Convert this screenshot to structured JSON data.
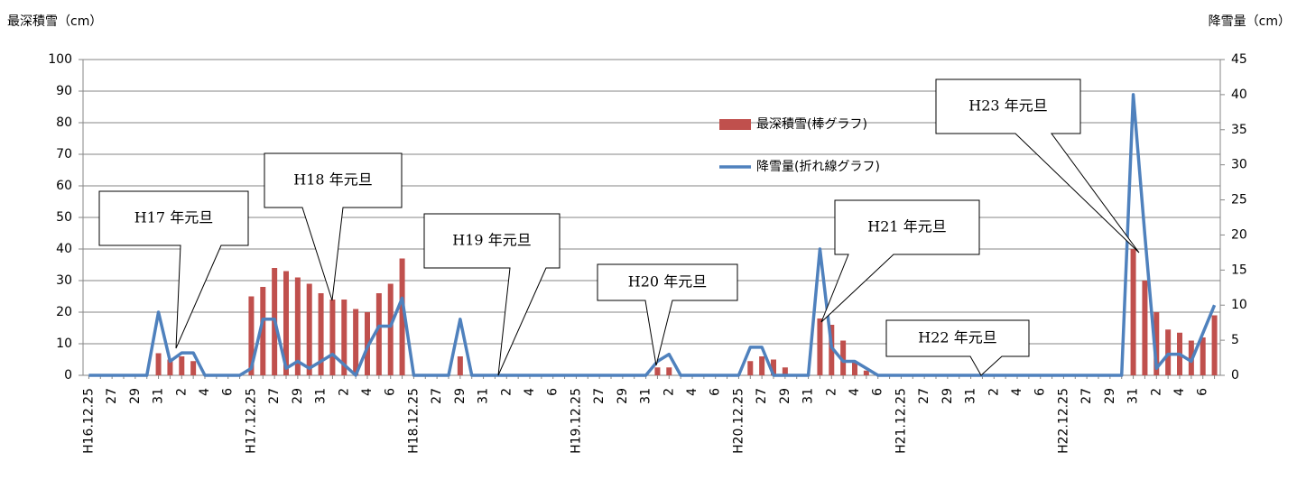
{
  "chart_data": {
    "type": "bar_line",
    "y_label": "最深積雪（cm）",
    "y2_label": "降雪量（cm）",
    "categories": [
      "H16.12.25",
      null,
      "27",
      null,
      "29",
      null,
      "31",
      null,
      "2",
      null,
      "4",
      null,
      "6",
      null,
      "H17.12.25",
      null,
      "27",
      null,
      "29",
      null,
      "31",
      null,
      "2",
      null,
      "4",
      null,
      "6",
      null,
      "H18.12.25",
      null,
      "27",
      null,
      "29",
      null,
      "31",
      null,
      "2",
      null,
      "4",
      null,
      "6",
      null,
      "H19.12.25",
      null,
      "27",
      null,
      "29",
      null,
      "31",
      null,
      "2",
      null,
      "4",
      null,
      "6",
      null,
      "H20.12.25",
      null,
      "27",
      null,
      "29",
      null,
      "31",
      null,
      "2",
      null,
      "4",
      null,
      "6",
      null,
      "H21.12.25",
      null,
      "27",
      null,
      "29",
      null,
      "31",
      null,
      "2",
      null,
      "4",
      null,
      "6",
      null,
      "H22.12.25",
      null,
      "27",
      null,
      "29",
      null,
      "31",
      null,
      "2",
      null,
      "4",
      null,
      "6",
      null
    ],
    "series": [
      {
        "name": "最深積雪(棒グラフ)",
        "type": "bar",
        "axis": "y",
        "color": "#c0504d",
        "values": [
          0,
          0,
          0,
          0,
          0,
          0,
          7,
          5,
          6,
          4.5,
          0,
          0,
          0,
          0,
          25,
          28,
          34,
          33,
          31,
          29,
          26,
          24,
          24,
          21,
          20,
          26,
          29,
          37,
          0,
          0,
          0,
          0,
          6,
          0,
          0,
          0,
          0,
          0,
          0,
          0,
          0,
          0,
          0,
          0,
          0,
          0,
          0,
          0,
          0,
          2.5,
          2.5,
          0,
          0,
          0,
          0,
          0,
          0,
          4.5,
          6,
          5,
          2.5,
          0,
          0,
          18,
          16,
          11,
          4,
          1.5,
          0,
          0,
          0,
          0,
          0,
          0,
          0,
          0,
          0,
          0,
          0,
          0,
          0,
          0,
          0,
          0,
          0,
          0,
          0,
          0,
          0,
          0,
          40,
          30,
          20,
          14.5,
          13.5,
          11,
          12,
          19
        ]
      },
      {
        "name": "降雪量(折れ線グラフ)",
        "type": "line",
        "axis": "y2",
        "color": "#4f81bd",
        "values": [
          0,
          0,
          0,
          0,
          0,
          0,
          9,
          2,
          3.2,
          3.2,
          0,
          0,
          0,
          0,
          1,
          8,
          8,
          1,
          2,
          1,
          2,
          3,
          1.5,
          0,
          4,
          7,
          7,
          11,
          0,
          0,
          0,
          0,
          8,
          0,
          0,
          0,
          0,
          0,
          0,
          0,
          0,
          0,
          0,
          0,
          0,
          0,
          0,
          0,
          0,
          2,
          3,
          0,
          0,
          0,
          0,
          0,
          0,
          4,
          4,
          0,
          0,
          0,
          0,
          18,
          4,
          2,
          2,
          1,
          0,
          0,
          0,
          0,
          0,
          0,
          0,
          0,
          0,
          0,
          0,
          0,
          0,
          0,
          0,
          0,
          0,
          0,
          0,
          0,
          0,
          0,
          40,
          20,
          1,
          3,
          3,
          2,
          6,
          10
        ]
      }
    ],
    "ylim": [
      0,
      100
    ],
    "yticks": [
      0,
      10,
      20,
      30,
      40,
      50,
      60,
      70,
      80,
      90,
      100
    ],
    "y2lim": [
      0,
      45
    ],
    "y2ticks": [
      0,
      5,
      10,
      15,
      20,
      25,
      30,
      35,
      40,
      45
    ],
    "grid": true,
    "annotations": [
      "H17 年元旦",
      "H18 年元旦",
      "H19 年元旦",
      "H20 年元旦",
      "H21 年元旦",
      "H22 年元旦",
      "H23 年元旦"
    ]
  }
}
